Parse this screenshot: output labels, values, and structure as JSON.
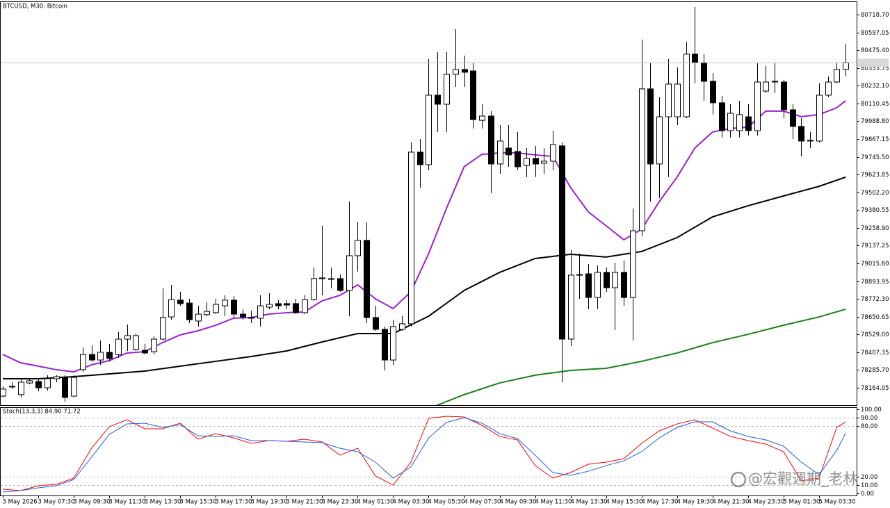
{
  "chart_data": [
    {
      "type": "candlestick",
      "title": "BTCUSD, M30: Bitcoin",
      "categories": [
        "3 May 2026",
        null,
        null,
        null,
        "3 May 07:30",
        null,
        null,
        null,
        "3 May 09:30",
        null,
        null,
        null,
        "3 May 11:30",
        null,
        null,
        null,
        "3 May 13:30",
        null,
        null,
        null,
        "3 May 15:30",
        null,
        null,
        null,
        "3 May 17:30",
        null,
        null,
        null,
        "3 May 19:30",
        null,
        null,
        null,
        "3 May 21:30",
        null,
        null,
        null,
        "3 May 23:30",
        null,
        null,
        null,
        "4 May 01:30",
        null,
        null,
        null,
        "4 May 03:30",
        null,
        null,
        null,
        "4 May 05:30",
        null,
        null,
        null,
        "4 May 07:30",
        null,
        null,
        null,
        "4 May 09:30",
        null,
        null,
        null,
        "4 May 11:30",
        null,
        null,
        null,
        "4 May 13:30",
        null,
        null,
        null,
        "4 May 15:30",
        null,
        null,
        null,
        "4 May 17:30",
        null,
        null,
        null,
        "4 May 19:30",
        null,
        null,
        null,
        "4 May 21:30",
        null,
        null,
        null,
        "4 May 23:30",
        null,
        null,
        null,
        "5 May 01:30",
        null,
        null,
        null,
        "5 May 03:30",
        null,
        null,
        null
      ],
      "open": [
        78107,
        78169,
        78117,
        78197,
        78207,
        78164,
        78226,
        78231,
        78107,
        78288,
        78392,
        78354,
        78407,
        78392,
        78497,
        78426,
        78421,
        78411,
        78497,
        78649,
        78764,
        78744,
        78621,
        78664,
        78678,
        78725,
        78764,
        78668,
        78645,
        78640,
        78716,
        78740,
        78740,
        78740,
        78678,
        78768,
        78911,
        78906,
        78911,
        78830,
        79068,
        79173,
        78645,
        78564,
        78354,
        78564,
        78602,
        79777,
        79691,
        80167,
        80105,
        80310,
        80343,
        80333,
        79995,
        80024,
        79696,
        79805,
        79782,
        79686,
        79734,
        79701,
        79715,
        79820,
        78497,
        78935,
        78944,
        78782,
        78954,
        78849,
        78954,
        78782,
        79239,
        80210,
        79696,
        80019,
        80019,
        80019,
        80448,
        80390,
        80262,
        80115,
        79924,
        79924,
        80019,
        79924,
        80195,
        80257,
        80257,
        80067,
        79953,
        79853,
        79853,
        80167,
        80257,
        80343
      ],
      "high": [
        78174,
        78202,
        78226,
        78226,
        78226,
        78250,
        78250,
        78250,
        78250,
        78440,
        78454,
        78488,
        78464,
        78545,
        78597,
        78535,
        78464,
        78516,
        78844,
        78868,
        78821,
        78773,
        78725,
        78749,
        78773,
        78797,
        78792,
        78702,
        78692,
        78797,
        78811,
        78764,
        78764,
        78773,
        78797,
        78987,
        79273,
        78987,
        78940,
        79439,
        79297,
        79297,
        78725,
        78583,
        78630,
        78654,
        79843,
        79867,
        80414,
        80462,
        80462,
        80619,
        80438,
        80390,
        80105,
        80058,
        79962,
        79962,
        79915,
        79805,
        79820,
        79805,
        79924,
        79843,
        79106,
        79082,
        79011,
        79001,
        78987,
        79020,
        79035,
        79391,
        80548,
        80390,
        80153,
        80414,
        80357,
        80533,
        80771,
        80448,
        80319,
        80162,
        80105,
        80129,
        80105,
        80390,
        80367,
        80390,
        80272,
        80105,
        80010,
        79915,
        80248,
        80295,
        80390,
        80519
      ],
      "low": [
        78098,
        78155,
        78098,
        78188,
        78140,
        78145,
        78202,
        78069,
        78098,
        78273,
        78345,
        78321,
        78345,
        78369,
        78416,
        78416,
        78392,
        78392,
        78488,
        78630,
        78725,
        78607,
        78583,
        78654,
        78668,
        78654,
        78640,
        78630,
        78607,
        78583,
        78702,
        78702,
        78702,
        78668,
        78668,
        78759,
        78797,
        78844,
        78821,
        78654,
        78959,
        78607,
        78554,
        78283,
        78321,
        78554,
        78583,
        79534,
        79653,
        79915,
        79915,
        80224,
        80224,
        79939,
        79939,
        79496,
        79629,
        79677,
        79653,
        79606,
        79606,
        79629,
        79653,
        78202,
        78449,
        78773,
        78702,
        78702,
        78821,
        78559,
        78725,
        78488,
        79201,
        79439,
        79463,
        79606,
        79962,
        80010,
        80248,
        80129,
        80034,
        79877,
        79877,
        79877,
        79891,
        79891,
        80181,
        80181,
        80010,
        79867,
        79748,
        79805,
        79843,
        80153,
        80248,
        80295
      ],
      "close": [
        78155,
        78174,
        78202,
        78212,
        78164,
        78226,
        78240,
        78098,
        78235,
        78392,
        78354,
        78407,
        78364,
        78497,
        78521,
        78521,
        78402,
        78497,
        78645,
        78768,
        78740,
        78630,
        78668,
        78687,
        78735,
        78764,
        78668,
        78649,
        78640,
        78725,
        78735,
        78725,
        78730,
        78678,
        78768,
        78911,
        78916,
        78911,
        78830,
        79068,
        79173,
        78645,
        78564,
        78354,
        78583,
        78602,
        79777,
        79691,
        80167,
        80105,
        80310,
        80343,
        80324,
        80000,
        80024,
        79696,
        79853,
        79758,
        79677,
        79734,
        79696,
        79715,
        79829,
        78497,
        78935,
        78939,
        78782,
        78954,
        78849,
        78954,
        78782,
        79239,
        80210,
        79696,
        80019,
        80243,
        80243,
        80448,
        80390,
        80262,
        80115,
        79924,
        80043,
        80034,
        79924,
        80257,
        80257,
        80262,
        80067,
        79953,
        79853,
        79858,
        80167,
        80257,
        80343,
        80390
      ],
      "up_color": "#ffffff",
      "down_color": "#000000",
      "ylim": [
        78045,
        80809
      ],
      "yticks": [
        {
          "value": 80718.7,
          "label": "80718.70"
        },
        {
          "value": 80597.05,
          "label": "80597.05"
        },
        {
          "value": 80475.4,
          "label": "80475.40"
        },
        {
          "value": 80353.75,
          "label": "80353.75"
        },
        {
          "value": 80232.1,
          "label": "80232.10"
        },
        {
          "value": 80110.45,
          "label": "80110.45"
        },
        {
          "value": 79988.8,
          "label": "79988.80"
        },
        {
          "value": 79867.15,
          "label": "79867.15"
        },
        {
          "value": 79745.5,
          "label": "79745.50"
        },
        {
          "value": 79623.85,
          "label": "79623.85"
        },
        {
          "value": 79502.2,
          "label": "79502.20"
        },
        {
          "value": 79380.55,
          "label": "79380.55"
        },
        {
          "value": 79258.9,
          "label": "79258.90"
        },
        {
          "value": 79137.25,
          "label": "79137.25"
        },
        {
          "value": 79015.6,
          "label": "79015.60"
        },
        {
          "value": 78893.95,
          "label": "78893.95"
        },
        {
          "value": 78772.3,
          "label": "78772.30"
        },
        {
          "value": 78650.65,
          "label": "78650.65"
        },
        {
          "value": 78529,
          "label": "78529.00"
        },
        {
          "value": 78407.35,
          "label": "78407.35"
        },
        {
          "value": 78285.7,
          "label": "78285.70"
        },
        {
          "value": 78164.05,
          "label": "78164.05"
        }
      ],
      "grid": false,
      "last_price": 80390,
      "overlays": [
        {
          "color": "#9c1fd1",
          "x": [
            0,
            2,
            4,
            6,
            8,
            10,
            12,
            14,
            16,
            18,
            20,
            22,
            24,
            26,
            28,
            30,
            32,
            34,
            36,
            38,
            40,
            42,
            44,
            46,
            48,
            50,
            52,
            54,
            56,
            58,
            60,
            62,
            64,
            66,
            68,
            70,
            72,
            74,
            76,
            78,
            80,
            82,
            84,
            86,
            88,
            90,
            92,
            94,
            95
          ],
          "values": [
            78392,
            78335,
            78312,
            78288,
            78273,
            78321,
            78350,
            78402,
            78411,
            78473,
            78526,
            78554,
            78592,
            78640,
            78645,
            78668,
            78678,
            78683,
            78759,
            78797,
            78868,
            78773,
            78706,
            78821,
            79082,
            79391,
            79677,
            79762,
            79772,
            79772,
            79758,
            79748,
            79534,
            79368,
            79273,
            79177,
            79249,
            79439,
            79606,
            79805,
            79915,
            79939,
            79948,
            80058,
            80058,
            80020,
            80034,
            80081,
            80129
          ]
        },
        {
          "color": "#000000",
          "x": [
            0,
            4,
            8,
            12,
            16,
            20,
            24,
            28,
            32,
            36,
            40,
            44,
            48,
            52,
            56,
            60,
            64,
            68,
            72,
            76,
            80,
            84,
            88,
            92,
            95
          ],
          "values": [
            78226,
            78226,
            78240,
            78259,
            78278,
            78312,
            78345,
            78378,
            78416,
            78478,
            78535,
            78535,
            78654,
            78830,
            78954,
            79049,
            79078,
            79059,
            79097,
            79192,
            79334,
            79410,
            79477,
            79543,
            79606
          ]
        },
        {
          "color": "#1a7f1a",
          "x": [
            48,
            52,
            56,
            60,
            64,
            68,
            72,
            76,
            80,
            84,
            88,
            92,
            95
          ],
          "values": [
            78021,
            78117,
            78197,
            78250,
            78283,
            78297,
            78345,
            78402,
            78473,
            78530,
            78592,
            78649,
            78702
          ]
        }
      ]
    },
    {
      "type": "line",
      "title": "Stoch(13,3,3) 84.90 71.72",
      "ylim": [
        0,
        100
      ],
      "yticks": [
        {
          "value": 100,
          "label": "100.00"
        },
        {
          "value": 90,
          "label": "90.00"
        },
        {
          "value": 80,
          "label": "80.00"
        },
        {
          "value": 20,
          "label": "20.00"
        },
        {
          "value": 10,
          "label": "10.00"
        },
        {
          "value": 0,
          "label": "0.00"
        }
      ],
      "grid": true,
      "series": [
        {
          "color": "#ff0000",
          "x": [
            0,
            2,
            4,
            6,
            8,
            10,
            12,
            14,
            16,
            18,
            20,
            22,
            24,
            26,
            28,
            30,
            32,
            34,
            36,
            38,
            40,
            42,
            44,
            46,
            48,
            50,
            52,
            54,
            56,
            58,
            60,
            62,
            64,
            66,
            68,
            70,
            72,
            74,
            76,
            78,
            80,
            82,
            84,
            86,
            88,
            90,
            92,
            94,
            95
          ],
          "values": [
            5.0,
            3.3,
            9.1,
            10.7,
            18.2,
            53.7,
            79.3,
            87.6,
            76.9,
            76.9,
            83.5,
            64.5,
            71.1,
            66.1,
            59.5,
            62.8,
            62.0,
            64.5,
            61.2,
            45.5,
            53.7,
            20.7,
            9.9,
            37.2,
            89.3,
            91.7,
            90.9,
            81.0,
            67.8,
            63.6,
            33.1,
            18.2,
            24.8,
            34.7,
            37.2,
            41.3,
            59.5,
            74.4,
            82.6,
            87.6,
            77.7,
            67.8,
            62.8,
            58.7,
            49.6,
            14.9,
            18.2,
            78.5,
            84.9
          ]
        },
        {
          "color": "#1e5fe6",
          "x": [
            0,
            2,
            4,
            6,
            8,
            10,
            12,
            14,
            16,
            18,
            20,
            22,
            24,
            26,
            28,
            30,
            32,
            34,
            36,
            38,
            40,
            42,
            44,
            46,
            48,
            50,
            52,
            54,
            56,
            58,
            60,
            62,
            64,
            66,
            68,
            70,
            72,
            74,
            76,
            78,
            80,
            82,
            84,
            86,
            88,
            90,
            92,
            94,
            95
          ],
          "values": [
            1.7,
            3.3,
            6.6,
            9.1,
            16.5,
            43.0,
            70.2,
            82.6,
            83.5,
            78.5,
            81.8,
            68.6,
            67.8,
            68.6,
            62.8,
            62.8,
            62.0,
            61.2,
            60.3,
            53.7,
            49.6,
            37.2,
            18.2,
            31.4,
            66.1,
            84.3,
            90.1,
            83.5,
            71.1,
            65.3,
            45.5,
            24.8,
            21.5,
            26.4,
            33.1,
            38.8,
            49.6,
            66.1,
            78.5,
            85.1,
            85.1,
            74.4,
            67.8,
            63.6,
            56.2,
            37.2,
            22.3,
            51.2,
            71.72
          ]
        }
      ]
    }
  ],
  "watermark": "@宏觀週期_老林"
}
